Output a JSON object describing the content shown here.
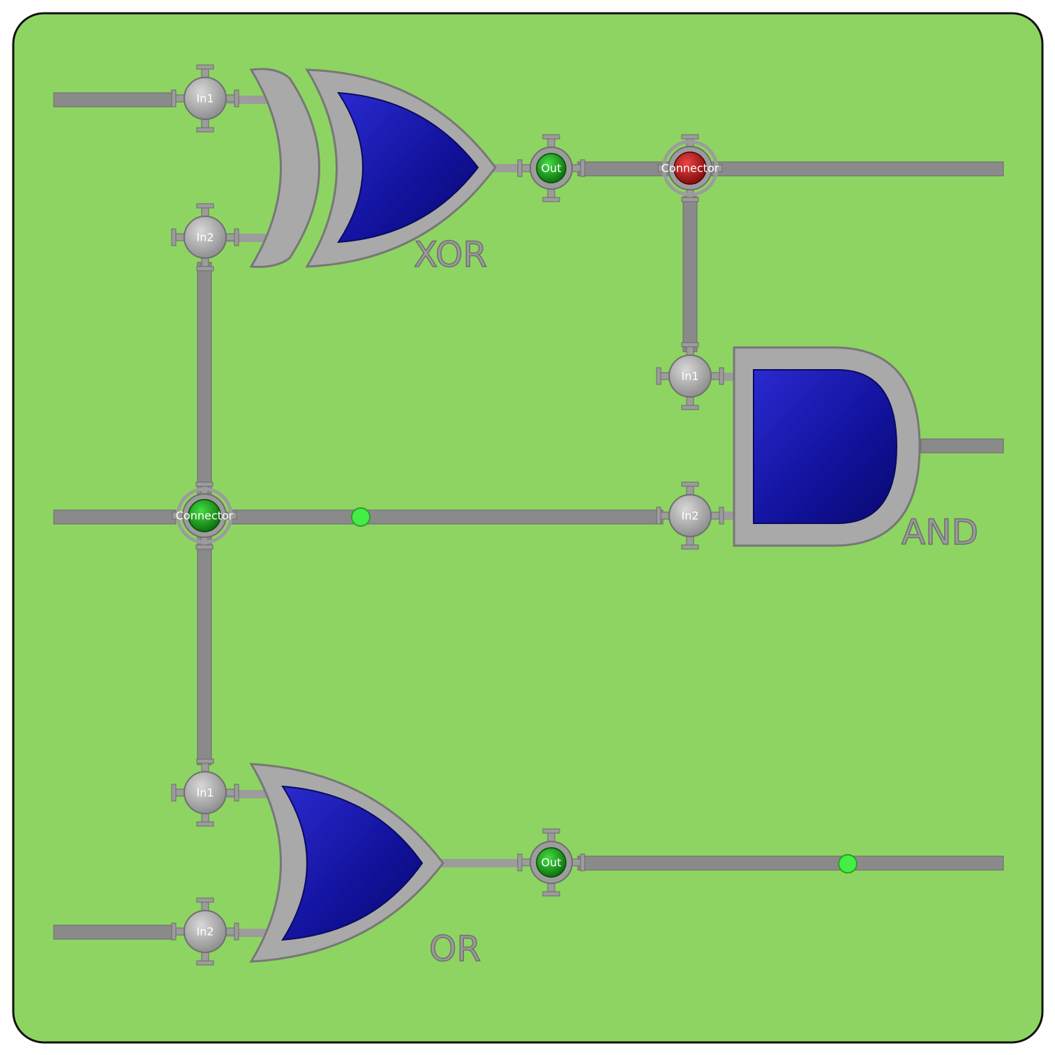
{
  "colors": {
    "board": "#8ed462",
    "wire": "#8a8a8a",
    "gate_fill": "#11119a",
    "gate_frame": "#a6a6a6",
    "pin_gray": "#9c9c9c",
    "pin_green": "#119911",
    "pin_red": "#bb1111",
    "signal_dot": "#44ee44"
  },
  "gates": {
    "xor": {
      "label": "XOR",
      "in1": "In1",
      "in2": "In2",
      "out": "Out"
    },
    "and": {
      "label": "AND",
      "in1": "In1",
      "in2": "In2"
    },
    "or": {
      "label": "OR",
      "in1": "In1",
      "in2": "In2",
      "out": "Out"
    }
  },
  "connectors": {
    "top": {
      "label": "Connector",
      "state": "red"
    },
    "middle": {
      "label": "Connector",
      "state": "green"
    }
  },
  "pin_states": {
    "xor_out": "green",
    "or_out": "green"
  }
}
